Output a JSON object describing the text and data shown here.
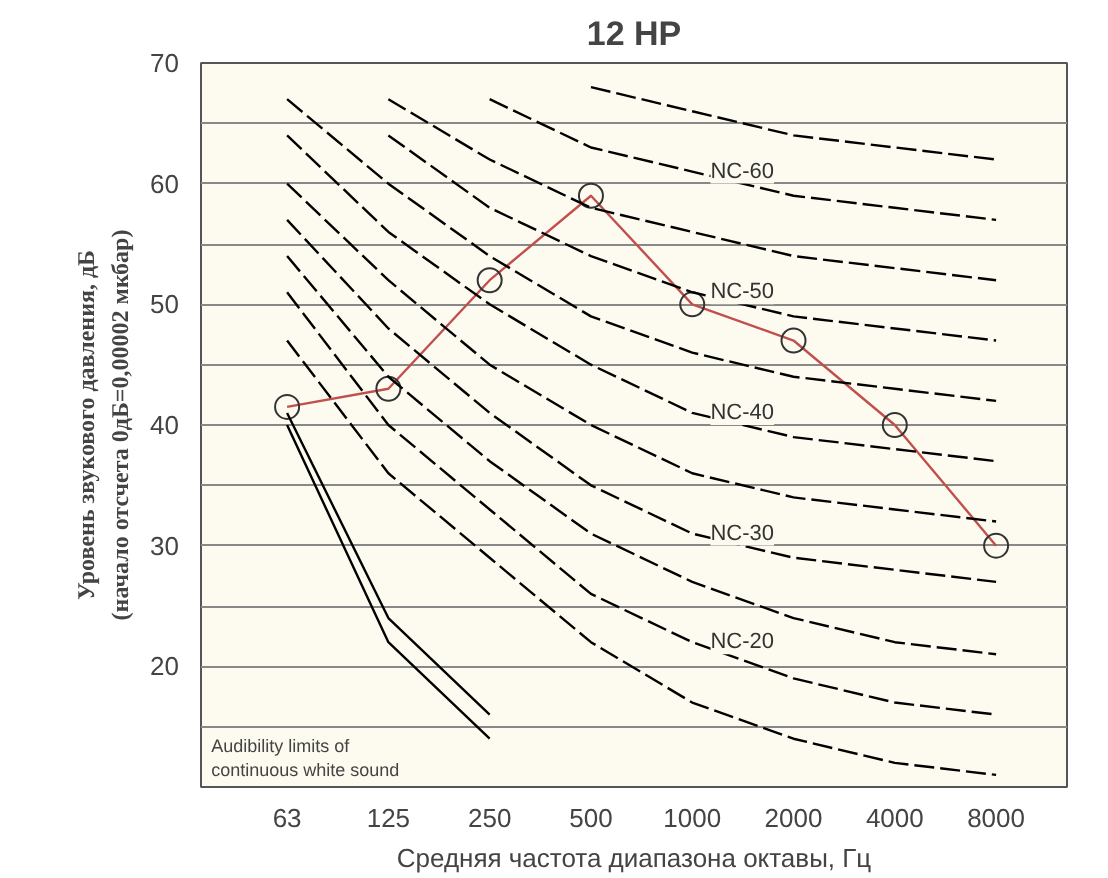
{
  "chart_data": {
    "type": "line",
    "title": "12 HP",
    "xlabel": "Средняя частота диапазона октавы, Гц",
    "ylabel": "Уровень звукового давления, дБ (начало отсчета 0дБ=0,00002 мкбар)",
    "categories": [
      "63",
      "125",
      "250",
      "500",
      "1000",
      "2000",
      "4000",
      "8000"
    ],
    "ylim": [
      10,
      70
    ],
    "yticks": [
      {
        "value": 10,
        "label": null
      },
      {
        "value": 15,
        "label": null
      },
      20,
      {
        "value": 25,
        "label": null
      },
      30,
      {
        "value": 35,
        "label": null
      },
      40,
      {
        "value": 45,
        "label": null
      },
      50,
      {
        "value": 55,
        "label": null
      },
      60,
      {
        "value": 65,
        "label": null
      },
      70
    ],
    "grid": "y",
    "annotations": [
      "Audibility limits of continuous white sound"
    ],
    "series": [
      {
        "color": "#c0504d",
        "marker": "circle",
        "line_style": "solid",
        "values": [
          41.5,
          43,
          52,
          59,
          50,
          47,
          40,
          30
        ]
      },
      {
        "color": "#000000",
        "marker": "none",
        "line_style": "solid",
        "values": [
          41,
          24,
          16,
          null,
          null,
          null,
          null,
          null
        ]
      },
      {
        "color": "#000000",
        "marker": "none",
        "line_style": "solid",
        "values": [
          40,
          22,
          14,
          null,
          null,
          null,
          null,
          null
        ]
      },
      {
        "color": "#000000",
        "marker": "none",
        "line_style": "dashed",
        "values": [
          null,
          null,
          null,
          68,
          66,
          64,
          63,
          62
        ]
      },
      {
        "name": "NC-60",
        "color": "#000000",
        "marker": "none",
        "line_style": "dashed",
        "values": [
          null,
          null,
          67,
          63,
          61,
          59,
          58,
          57
        ]
      },
      {
        "color": "#000000",
        "marker": "none",
        "line_style": "dashed",
        "values": [
          null,
          67,
          62,
          58,
          56,
          54,
          53,
          52
        ]
      },
      {
        "name": "NC-50",
        "color": "#000000",
        "marker": "none",
        "line_style": "dashed",
        "values": [
          null,
          64,
          58,
          54,
          51,
          49,
          48,
          47
        ]
      },
      {
        "color": "#000000",
        "marker": "none",
        "line_style": "dashed",
        "values": [
          67,
          60,
          54,
          49,
          46,
          44,
          43,
          42
        ]
      },
      {
        "name": "NC-40",
        "color": "#000000",
        "marker": "none",
        "line_style": "dashed",
        "values": [
          64,
          56,
          50,
          45,
          41,
          39,
          38,
          37
        ]
      },
      {
        "color": "#000000",
        "marker": "none",
        "line_style": "dashed",
        "values": [
          60,
          52,
          45,
          40,
          36,
          34,
          33,
          32
        ]
      },
      {
        "name": "NC-30",
        "color": "#000000",
        "marker": "none",
        "line_style": "dashed",
        "values": [
          57,
          48,
          41,
          35,
          31,
          29,
          28,
          27
        ]
      },
      {
        "color": "#000000",
        "marker": "none",
        "line_style": "dashed",
        "values": [
          54,
          44,
          37,
          31,
          27,
          24,
          22,
          21
        ]
      },
      {
        "name": "NC-20",
        "color": "#000000",
        "marker": "none",
        "line_style": "dashed",
        "values": [
          51,
          40,
          33,
          26,
          22,
          19,
          17,
          16
        ]
      },
      {
        "color": "#000000",
        "marker": "none",
        "line_style": "dashed",
        "values": [
          47,
          36,
          29,
          22,
          17,
          14,
          12,
          11
        ]
      }
    ]
  }
}
